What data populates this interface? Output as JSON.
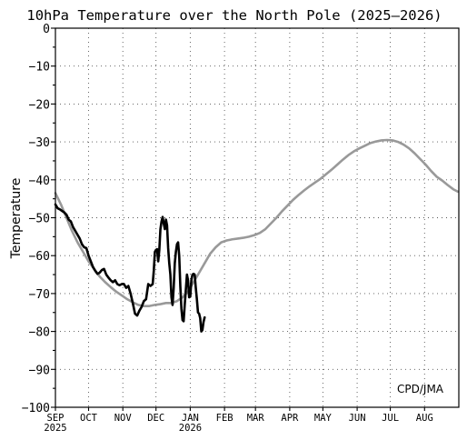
{
  "chart_data": {
    "type": "line",
    "title": "10hPa Temperature over the North Pole (2025–2026)",
    "ylabel": "Temperature",
    "xlabel": "",
    "credit": "CPD/JMA",
    "grid": true,
    "ylim": [
      -100,
      0
    ],
    "yticks": [
      0,
      -10,
      -20,
      -30,
      -40,
      -50,
      -60,
      -70,
      -80,
      -90,
      -100
    ],
    "ytick_labels": [
      "0",
      "−10",
      "−20",
      "−30",
      "−40",
      "−50",
      "−60",
      "−70",
      "−80",
      "−90",
      "−100"
    ],
    "xlim": [
      "2025-09-01",
      "2026-08-31"
    ],
    "month_ticks": [
      {
        "date": "2025-09-01",
        "label": "SEP",
        "year": "2025"
      },
      {
        "date": "2025-10-01",
        "label": "OCT",
        "year": ""
      },
      {
        "date": "2025-11-01",
        "label": "NOV",
        "year": ""
      },
      {
        "date": "2025-12-01",
        "label": "DEC",
        "year": ""
      },
      {
        "date": "2026-01-01",
        "label": "JAN",
        "year": "2026"
      },
      {
        "date": "2026-02-01",
        "label": "FEB",
        "year": ""
      },
      {
        "date": "2026-03-01",
        "label": "MAR",
        "year": ""
      },
      {
        "date": "2026-04-01",
        "label": "APR",
        "year": ""
      },
      {
        "date": "2026-05-01",
        "label": "MAY",
        "year": ""
      },
      {
        "date": "2026-06-01",
        "label": "JUN",
        "year": ""
      },
      {
        "date": "2026-07-01",
        "label": "JUL",
        "year": ""
      },
      {
        "date": "2026-08-01",
        "label": "AUG",
        "year": ""
      }
    ],
    "series": [
      {
        "color": "#999999",
        "points": [
          [
            "2025-09-01",
            -43.5
          ],
          [
            "2025-09-06",
            -46.5
          ],
          [
            "2025-09-11",
            -50
          ],
          [
            "2025-09-16",
            -53.5
          ],
          [
            "2025-09-21",
            -56.5
          ],
          [
            "2025-09-26",
            -59
          ],
          [
            "2025-10-01",
            -61.5
          ],
          [
            "2025-10-06",
            -63.5
          ],
          [
            "2025-10-11",
            -65.5
          ],
          [
            "2025-10-16",
            -67
          ],
          [
            "2025-10-21",
            -68.3
          ],
          [
            "2025-10-26",
            -69.5
          ],
          [
            "2025-10-31",
            -70.5
          ],
          [
            "2025-11-05",
            -71.5
          ],
          [
            "2025-11-10",
            -72.3
          ],
          [
            "2025-11-15",
            -73
          ],
          [
            "2025-11-20",
            -73.3
          ],
          [
            "2025-11-25",
            -73.3
          ],
          [
            "2025-11-30",
            -73
          ],
          [
            "2025-12-05",
            -72.8
          ],
          [
            "2025-12-10",
            -72.5
          ],
          [
            "2025-12-15",
            -72.5
          ],
          [
            "2025-12-20",
            -72
          ],
          [
            "2025-12-25",
            -71
          ],
          [
            "2025-12-30",
            -69.5
          ],
          [
            "2026-01-04",
            -67
          ],
          [
            "2026-01-09",
            -64.5
          ],
          [
            "2026-01-14",
            -62
          ],
          [
            "2026-01-19",
            -59.5
          ],
          [
            "2026-01-24",
            -57.8
          ],
          [
            "2026-01-29",
            -56.5
          ],
          [
            "2026-02-03",
            -56
          ],
          [
            "2026-02-08",
            -55.7
          ],
          [
            "2026-02-13",
            -55.5
          ],
          [
            "2026-02-18",
            -55.3
          ],
          [
            "2026-02-23",
            -55
          ],
          [
            "2026-02-28",
            -54.6
          ],
          [
            "2026-03-05",
            -54
          ],
          [
            "2026-03-10",
            -53
          ],
          [
            "2026-03-15",
            -51.5
          ],
          [
            "2026-03-20",
            -50
          ],
          [
            "2026-03-25",
            -48.3
          ],
          [
            "2026-03-30",
            -46.8
          ],
          [
            "2026-04-04",
            -45.3
          ],
          [
            "2026-04-09",
            -44
          ],
          [
            "2026-04-14",
            -42.8
          ],
          [
            "2026-04-19",
            -41.7
          ],
          [
            "2026-04-24",
            -40.7
          ],
          [
            "2026-04-29",
            -39.7
          ],
          [
            "2026-05-04",
            -38.5
          ],
          [
            "2026-05-09",
            -37.3
          ],
          [
            "2026-05-14",
            -36
          ],
          [
            "2026-05-19",
            -34.7
          ],
          [
            "2026-05-24",
            -33.5
          ],
          [
            "2026-05-29",
            -32.5
          ],
          [
            "2026-06-03",
            -31.7
          ],
          [
            "2026-06-08",
            -31
          ],
          [
            "2026-06-13",
            -30.3
          ],
          [
            "2026-06-18",
            -29.9
          ],
          [
            "2026-06-23",
            -29.6
          ],
          [
            "2026-06-28",
            -29.5
          ],
          [
            "2026-07-03",
            -29.6
          ],
          [
            "2026-07-08",
            -30
          ],
          [
            "2026-07-13",
            -30.7
          ],
          [
            "2026-07-18",
            -31.7
          ],
          [
            "2026-07-23",
            -33
          ],
          [
            "2026-07-28",
            -34.5
          ],
          [
            "2026-08-02",
            -36
          ],
          [
            "2026-08-07",
            -37.7
          ],
          [
            "2026-08-12",
            -39.2
          ],
          [
            "2026-08-17",
            -40.2
          ],
          [
            "2026-08-22",
            -41.4
          ],
          [
            "2026-08-27",
            -42.5
          ],
          [
            "2026-08-31",
            -43.1
          ]
        ]
      },
      {
        "color": "#000000",
        "points": [
          [
            "2025-09-01",
            -46.5
          ],
          [
            "2025-09-03",
            -47.5
          ],
          [
            "2025-09-05",
            -47.8
          ],
          [
            "2025-09-07",
            -48.2
          ],
          [
            "2025-09-09",
            -48.6
          ],
          [
            "2025-09-11",
            -49.2
          ],
          [
            "2025-09-13",
            -50.5
          ],
          [
            "2025-09-15",
            -51
          ],
          [
            "2025-09-17",
            -52.5
          ],
          [
            "2025-09-19",
            -53.5
          ],
          [
            "2025-09-21",
            -54.5
          ],
          [
            "2025-09-23",
            -55.5
          ],
          [
            "2025-09-25",
            -57
          ],
          [
            "2025-09-27",
            -57.8
          ],
          [
            "2025-09-29",
            -58
          ],
          [
            "2025-10-01",
            -60
          ],
          [
            "2025-10-03",
            -61.5
          ],
          [
            "2025-10-05",
            -63
          ],
          [
            "2025-10-07",
            -64
          ],
          [
            "2025-10-09",
            -64.8
          ],
          [
            "2025-10-11",
            -64.5
          ],
          [
            "2025-10-13",
            -63.8
          ],
          [
            "2025-10-15",
            -63.5
          ],
          [
            "2025-10-17",
            -65
          ],
          [
            "2025-10-19",
            -65.8
          ],
          [
            "2025-10-21",
            -66.5
          ],
          [
            "2025-10-23",
            -67
          ],
          [
            "2025-10-25",
            -66.5
          ],
          [
            "2025-10-27",
            -67.5
          ],
          [
            "2025-10-29",
            -67.8
          ],
          [
            "2025-10-31",
            -67.5
          ],
          [
            "2025-11-02",
            -67.5
          ],
          [
            "2025-11-04",
            -68.5
          ],
          [
            "2025-11-06",
            -68
          ],
          [
            "2025-11-08",
            -70
          ],
          [
            "2025-11-10",
            -72.5
          ],
          [
            "2025-11-12",
            -75.3
          ],
          [
            "2025-11-14",
            -75.8
          ],
          [
            "2025-11-16",
            -74.5
          ],
          [
            "2025-11-18",
            -73.5
          ],
          [
            "2025-11-20",
            -72
          ],
          [
            "2025-11-22",
            -71.5
          ],
          [
            "2025-11-24",
            -67.5
          ],
          [
            "2025-11-26",
            -68
          ],
          [
            "2025-11-28",
            -67.5
          ],
          [
            "2025-11-29",
            -64
          ],
          [
            "2025-11-30",
            -59
          ],
          [
            "2025-12-01",
            -58.5
          ],
          [
            "2025-12-02",
            -58.3
          ],
          [
            "2025-12-03",
            -61.5
          ],
          [
            "2025-12-04",
            -58.5
          ],
          [
            "2025-12-05",
            -53
          ],
          [
            "2025-12-06",
            -51
          ],
          [
            "2025-12-07",
            -49.8
          ],
          [
            "2025-12-08",
            -51.5
          ],
          [
            "2025-12-09",
            -53
          ],
          [
            "2025-12-10",
            -50.5
          ],
          [
            "2025-12-11",
            -52
          ],
          [
            "2025-12-12",
            -58
          ],
          [
            "2025-12-13",
            -62
          ],
          [
            "2025-12-14",
            -65
          ],
          [
            "2025-12-15",
            -71
          ],
          [
            "2025-12-16",
            -73
          ],
          [
            "2025-12-17",
            -68.5
          ],
          [
            "2025-12-18",
            -62
          ],
          [
            "2025-12-19",
            -59
          ],
          [
            "2025-12-20",
            -57
          ],
          [
            "2025-12-21",
            -56.5
          ],
          [
            "2025-12-22",
            -60
          ],
          [
            "2025-12-23",
            -68
          ],
          [
            "2025-12-24",
            -74
          ],
          [
            "2025-12-25",
            -77
          ],
          [
            "2025-12-26",
            -77.3
          ],
          [
            "2025-12-27",
            -73
          ],
          [
            "2025-12-28",
            -69
          ],
          [
            "2025-12-29",
            -65
          ],
          [
            "2025-12-30",
            -66.5
          ],
          [
            "2025-12-31",
            -71
          ],
          [
            "2026-01-01",
            -70.8
          ],
          [
            "2026-01-02",
            -66.5
          ],
          [
            "2026-01-03",
            -65
          ],
          [
            "2026-01-04",
            -64.8
          ],
          [
            "2026-01-05",
            -65
          ],
          [
            "2026-01-06",
            -68.5
          ],
          [
            "2026-01-07",
            -71.5
          ],
          [
            "2026-01-08",
            -75
          ],
          [
            "2026-01-09",
            -75.3
          ],
          [
            "2026-01-10",
            -76.5
          ],
          [
            "2026-01-11",
            -80
          ],
          [
            "2026-01-12",
            -79.6
          ],
          [
            "2026-01-13",
            -77.5
          ],
          [
            "2026-01-14",
            -76.3
          ]
        ]
      }
    ]
  }
}
